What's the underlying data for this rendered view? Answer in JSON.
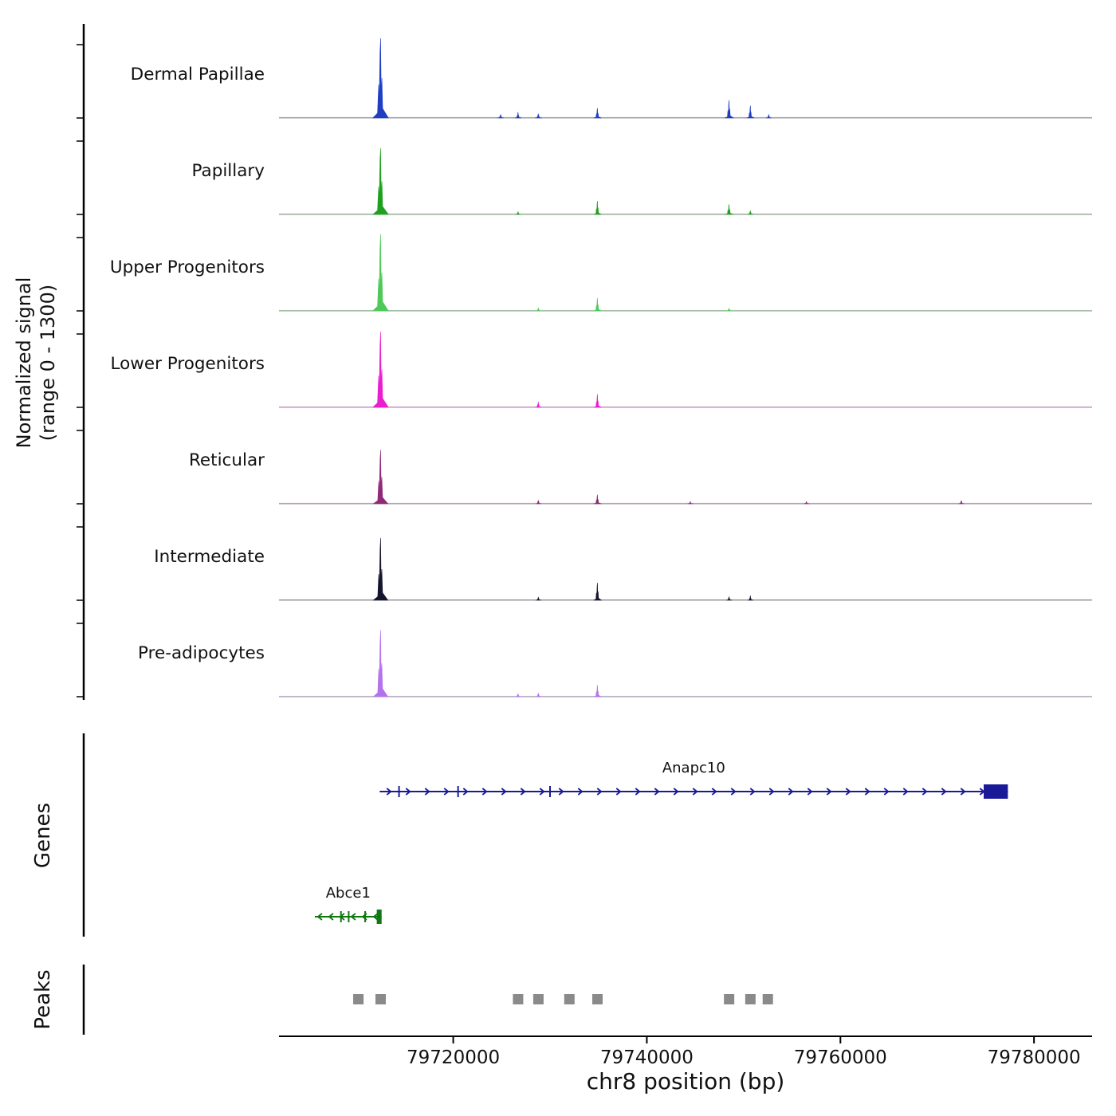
{
  "chart_data": {
    "type": "area",
    "ylabel_line1": "Normalized signal",
    "ylabel_line2": "(range 0 - 1300)",
    "xlabel": "chr8 position (bp)",
    "x_range": [
      79702000,
      79786000
    ],
    "x_ticks": [
      79720000,
      79740000,
      79760000,
      79780000
    ],
    "track_y_range": [
      0,
      1300
    ],
    "tracks": [
      {
        "label": "Dermal Papillae",
        "color": "#1f3ec4",
        "peaks": [
          [
            79712500,
            1300,
            1600
          ],
          [
            79724900,
            55,
            700
          ],
          [
            79726700,
            95,
            700
          ],
          [
            79728800,
            70,
            700
          ],
          [
            79734900,
            160,
            800
          ],
          [
            79748500,
            290,
            900
          ],
          [
            79750700,
            200,
            800
          ],
          [
            79752600,
            55,
            600
          ]
        ]
      },
      {
        "label": "Papillary",
        "color": "#1fa01f",
        "peaks": [
          [
            79712500,
            1080,
            1600
          ],
          [
            79726700,
            45,
            600
          ],
          [
            79734900,
            220,
            800
          ],
          [
            79748500,
            165,
            900
          ],
          [
            79750700,
            60,
            700
          ]
        ]
      },
      {
        "label": "Upper Progenitors",
        "color": "#4fc95a",
        "peaks": [
          [
            79712500,
            1250,
            1600
          ],
          [
            79728800,
            45,
            600
          ],
          [
            79734900,
            210,
            800
          ],
          [
            79748500,
            45,
            600
          ]
        ]
      },
      {
        "label": "Lower Progenitors",
        "color": "#ea1fd0",
        "peaks": [
          [
            79712500,
            1235,
            1600
          ],
          [
            79728800,
            90,
            700
          ],
          [
            79734900,
            215,
            800
          ]
        ]
      },
      {
        "label": "Reticular",
        "color": "#8f2a78",
        "peaks": [
          [
            79712500,
            880,
            1500
          ],
          [
            79728800,
            60,
            600
          ],
          [
            79734900,
            150,
            800
          ],
          [
            79744500,
            35,
            600
          ],
          [
            79756500,
            35,
            600
          ],
          [
            79772500,
            55,
            600
          ]
        ]
      },
      {
        "label": "Intermediate",
        "color": "#15152e",
        "peaks": [
          [
            79712500,
            1015,
            1500
          ],
          [
            79728800,
            50,
            600
          ],
          [
            79734900,
            285,
            800
          ],
          [
            79748500,
            60,
            600
          ],
          [
            79750700,
            75,
            600
          ]
        ]
      },
      {
        "label": "Pre-adipocytes",
        "color": "#b473ea",
        "peaks": [
          [
            79712500,
            1090,
            1500
          ],
          [
            79726700,
            50,
            600
          ],
          [
            79728800,
            60,
            600
          ],
          [
            79734900,
            190,
            800
          ]
        ]
      }
    ],
    "genes_label": "Genes",
    "genes": [
      {
        "name": "Anapc10",
        "start": 79712400,
        "end": 79777300,
        "strand": "+",
        "color": "#1a1a99",
        "exon_ticks": [
          79714400,
          79720500,
          79730000
        ],
        "end_block": [
          79774800,
          79777300
        ]
      },
      {
        "name": "Abce1",
        "start": 79705700,
        "end": 79712600,
        "strand": "-",
        "color": "#117711",
        "exon_ticks": [
          79708400,
          79709200,
          79710900
        ],
        "end_block": [
          79712100,
          79712600
        ]
      }
    ],
    "peaks_label": "Peaks",
    "peaks_color": "#8a8a8a",
    "peak_regions": [
      79710200,
      79712500,
      79726700,
      79728800,
      79732000,
      79734900,
      79748500,
      79750700,
      79752500
    ]
  }
}
